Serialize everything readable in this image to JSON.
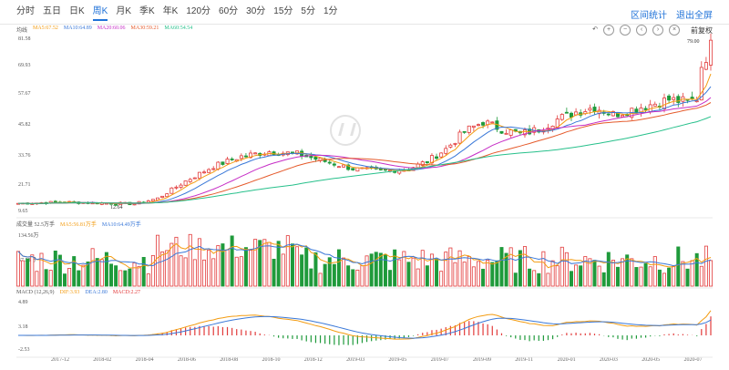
{
  "tabs": [
    "分时",
    "五日",
    "日K",
    "周K",
    "月K",
    "季K",
    "年K",
    "120分",
    "60分",
    "30分",
    "15分",
    "5分",
    "1分"
  ],
  "active_tab": "周K",
  "right_links": {
    "zone": "区间统计",
    "exit": "退出全屏"
  },
  "price_panel": {
    "label": "均线",
    "ma": [
      {
        "text": "MA5:67.52",
        "color": "#f39c12"
      },
      {
        "text": "MA10:64.89",
        "color": "#3a78d8"
      },
      {
        "text": "MA20:60.06",
        "color": "#c62ec6"
      },
      {
        "text": "MA30:59.21",
        "color": "#e55a2b"
      },
      {
        "text": "MA60:54.54",
        "color": "#27c08b"
      }
    ],
    "y_ticks": [
      "81.58",
      "69.93",
      "57.67",
      "45.82",
      "33.76",
      "21.71",
      "9.65"
    ],
    "high_note": "79.00",
    "low_note": "12.64",
    "adjust": "前复权"
  },
  "volume_panel": {
    "label": "成交量 52.5万手",
    "ma": [
      {
        "text": "MA5:56.81万手",
        "color": "#f39c12"
      },
      {
        "text": "MA10:64.49万手",
        "color": "#3a78d8"
      }
    ],
    "y_ticks": [
      "134.56万",
      "67.28万"
    ]
  },
  "macd_panel": {
    "label": "MACD (12,26,9)",
    "dif": {
      "text": "DIF:3.93",
      "color": "#f39c12"
    },
    "dea": {
      "text": "DEA:2.80",
      "color": "#3a78d8"
    },
    "macd": {
      "text": "MACD:2.27",
      "color": "#e23b3b"
    },
    "y_ticks": [
      "4.89",
      "3.18",
      "-2.53"
    ]
  },
  "x_dates": [
    "2017-12",
    "2018-02",
    "2018-04",
    "2018-06",
    "2018-08",
    "2018-10",
    "2018-12",
    "2019-03",
    "2019-05",
    "2019-07",
    "2019-09",
    "2019-11",
    "2020-01",
    "2020-03",
    "2020-05",
    "2020-07"
  ],
  "chart_data": {
    "type": "candlestick",
    "series": [
      {
        "name": "MA5",
        "value": 67.52
      },
      {
        "name": "MA10",
        "value": 64.89
      },
      {
        "name": "MA20",
        "value": 60.06
      },
      {
        "name": "MA30",
        "value": 59.21
      },
      {
        "name": "MA60",
        "value": 54.54
      }
    ],
    "ylim": [
      9.65,
      81.58
    ],
    "high": 79.0,
    "low": 12.64
  }
}
